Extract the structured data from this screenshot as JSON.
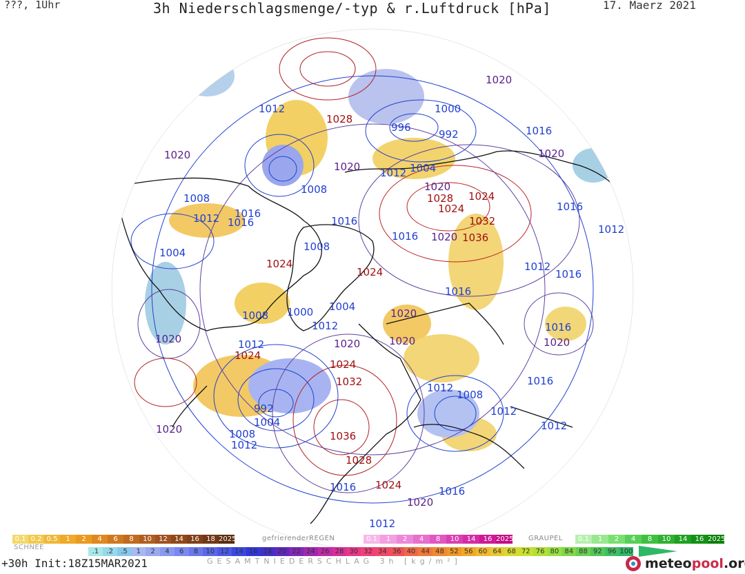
{
  "header": {
    "left": "???, 1Uhr",
    "title": "3h Niederschlagsmenge/-typ & r.Luftdruck [hPa]",
    "date": "17. Maerz 2021"
  },
  "isobars": [
    {
      "t": "1020",
      "c": "#5a1f8a"
    },
    {
      "t": "1012",
      "c": "#2040d0"
    },
    {
      "t": "1028",
      "c": "#a01010"
    },
    {
      "t": "1020",
      "c": "#5a1f8a"
    },
    {
      "t": "1000",
      "c": "#2040d0"
    },
    {
      "t": "996",
      "c": "#2040d0"
    },
    {
      "t": "992",
      "c": "#2040d0"
    },
    {
      "t": "1016",
      "c": "#2040d0"
    },
    {
      "t": "1020",
      "c": "#5a1f8a"
    },
    {
      "t": "1020",
      "c": "#5a1f8a"
    },
    {
      "t": "1012",
      "c": "#2040d0"
    },
    {
      "t": "1004",
      "c": "#2040d0"
    },
    {
      "t": "1008",
      "c": "#2040d0"
    },
    {
      "t": "1020",
      "c": "#5a1f8a"
    },
    {
      "t": "1028",
      "c": "#a01010"
    },
    {
      "t": "1024",
      "c": "#a01010"
    },
    {
      "t": "1024",
      "c": "#a01010"
    },
    {
      "t": "1008",
      "c": "#2040d0"
    },
    {
      "t": "1016",
      "c": "#2040d0"
    },
    {
      "t": "1012",
      "c": "#2040d0"
    },
    {
      "t": "1016",
      "c": "#2040d0"
    },
    {
      "t": "1016",
      "c": "#2040d0"
    },
    {
      "t": "1016",
      "c": "#2040d0"
    },
    {
      "t": "1032",
      "c": "#a01010"
    },
    {
      "t": "1016",
      "c": "#2040d0"
    },
    {
      "t": "1020",
      "c": "#5a1f8a"
    },
    {
      "t": "1036",
      "c": "#a01010"
    },
    {
      "t": "1004",
      "c": "#2040d0"
    },
    {
      "t": "1012",
      "c": "#2040d0"
    },
    {
      "t": "1008",
      "c": "#2040d0"
    },
    {
      "t": "1024",
      "c": "#a01010"
    },
    {
      "t": "1024",
      "c": "#a01010"
    },
    {
      "t": "1012",
      "c": "#2040d0"
    },
    {
      "t": "1016",
      "c": "#2040d0"
    },
    {
      "t": "1016",
      "c": "#2040d0"
    },
    {
      "t": "1004",
      "c": "#2040d0"
    },
    {
      "t": "1008",
      "c": "#2040d0"
    },
    {
      "t": "1000",
      "c": "#2040d0"
    },
    {
      "t": "1012",
      "c": "#2040d0"
    },
    {
      "t": "1020",
      "c": "#5a1f8a"
    },
    {
      "t": "1020",
      "c": "#5a1f8a"
    },
    {
      "t": "1020",
      "c": "#5a1f8a"
    },
    {
      "t": "1020",
      "c": "#5a1f8a"
    },
    {
      "t": "1016",
      "c": "#2040d0"
    },
    {
      "t": "1020",
      "c": "#5a1f8a"
    },
    {
      "t": "1012",
      "c": "#2040d0"
    },
    {
      "t": "1024",
      "c": "#a01010"
    },
    {
      "t": "1024",
      "c": "#a01010"
    },
    {
      "t": "1032",
      "c": "#a01010"
    },
    {
      "t": "1016",
      "c": "#2040d0"
    },
    {
      "t": "1012",
      "c": "#2040d0"
    },
    {
      "t": "1008",
      "c": "#2040d0"
    },
    {
      "t": "992",
      "c": "#2040d0"
    },
    {
      "t": "1004",
      "c": "#2040d0"
    },
    {
      "t": "1012",
      "c": "#2040d0"
    },
    {
      "t": "1012",
      "c": "#2040d0"
    },
    {
      "t": "1008",
      "c": "#2040d0"
    },
    {
      "t": "1012",
      "c": "#2040d0"
    },
    {
      "t": "1020",
      "c": "#5a1f8a"
    },
    {
      "t": "1036",
      "c": "#a01010"
    },
    {
      "t": "1028",
      "c": "#a01010"
    },
    {
      "t": "1016",
      "c": "#2040d0"
    },
    {
      "t": "1024",
      "c": "#a01010"
    },
    {
      "t": "1020",
      "c": "#5a1f8a"
    },
    {
      "t": "1016",
      "c": "#2040d0"
    },
    {
      "t": "1012",
      "c": "#2040d0"
    }
  ],
  "legend": {
    "snow_label": "SCHNEE",
    "snow": {
      "items": [
        "0.1",
        "0.2",
        "0.5",
        "1",
        "2",
        "4",
        "6",
        "8",
        "10",
        "12",
        "14",
        "16",
        "18",
        "2025+"
      ],
      "colors": [
        "#f4d86a",
        "#f2c94e",
        "#efb838",
        "#f0a928",
        "#eb9a20",
        "#e08820",
        "#d07820",
        "#c06a20",
        "#b05e20",
        "#a05220",
        "#904818",
        "#804018",
        "#703818",
        "#5a2c10"
      ]
    },
    "frz_label": "gefrierenderREGEN",
    "frz": {
      "items": [
        "0.1",
        "1",
        "2",
        "4",
        "8",
        "10",
        "14",
        "16",
        "2025+"
      ],
      "colors": [
        "#f7b8e8",
        "#f2a0e0",
        "#ec88d8",
        "#e670cc",
        "#e058c0",
        "#da40b2",
        "#d42ca4",
        "#ce1a96",
        "#c40c86"
      ]
    },
    "graupel_label": "GRAUPEL",
    "graupel": {
      "items": [
        "0.1",
        "1",
        "2",
        "4",
        "8",
        "10",
        "14",
        "16",
        "2025+"
      ],
      "colors": [
        "#b8f0b0",
        "#98e890",
        "#78e070",
        "#58d058",
        "#40c040",
        "#30b030",
        "#20a020",
        "#149014",
        "#0a800a"
      ]
    },
    "total": {
      "items": [
        ".1",
        ".2",
        ".5",
        "1",
        "2",
        "4",
        "6",
        "8",
        "10",
        "12",
        "14",
        "16",
        "18",
        "20",
        "22",
        "24",
        "26",
        "28",
        "30",
        "32",
        "34",
        "36",
        "40",
        "44",
        "48",
        "52",
        "56",
        "60",
        "64",
        "68",
        "72",
        "76",
        "80",
        "84",
        "88",
        "92",
        "96",
        "100"
      ],
      "colors": [
        "#a8e8e8",
        "#98d8e8",
        "#88c8e8",
        "#a8b8f0",
        "#9aa8f0",
        "#8a98f0",
        "#7a88f0",
        "#6a78ec",
        "#5a68e8",
        "#4a58e4",
        "#3a48e0",
        "#3038d8",
        "#4030c8",
        "#6028c0",
        "#8028b8",
        "#a028b0",
        "#c02ca8",
        "#d83098",
        "#e83888",
        "#f04078",
        "#f04868",
        "#f05058",
        "#f06848",
        "#f07838",
        "#f08830",
        "#f09828",
        "#f0a828",
        "#f0b830",
        "#e8c830",
        "#d8d830",
        "#c8e030",
        "#b0e038",
        "#98e040",
        "#80d848",
        "#68d050",
        "#50c858",
        "#40c060",
        "#30b868"
      ]
    },
    "total_label": "GESAMTNIEDERSCHLAG 3h [kg/m²]"
  },
  "footer": {
    "run": "+30h Init:18Z15MAR2021",
    "brand_main": "meteo",
    "brand_sub": "pool",
    "brand_tld": ".org"
  }
}
